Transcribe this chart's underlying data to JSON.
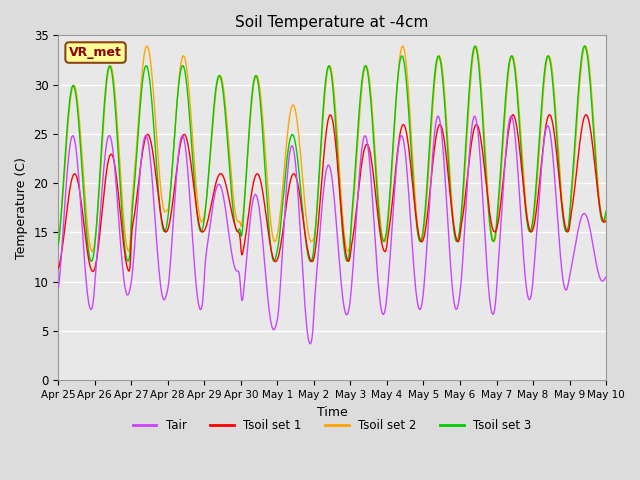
{
  "title": "Soil Temperature at -4cm",
  "xlabel": "Time",
  "ylabel": "Temperature (C)",
  "ylim": [
    0,
    35
  ],
  "background_color": "#dcdcdc",
  "plot_bg_color": "#e8e8e8",
  "colors": {
    "Tair": "#cc44ff",
    "Tsoil set 1": "#ff0000",
    "Tsoil set 2": "#ffa500",
    "Tsoil set 3": "#00cc00"
  },
  "legend_label": "VR_met",
  "xtick_labels": [
    "Apr 25",
    "Apr 26",
    "Apr 27",
    "Apr 28",
    "Apr 29",
    "Apr 30",
    "May 1",
    "May 2",
    "May 3",
    "May 4",
    "May 5",
    "May 6",
    "May 7",
    "May 8",
    "May 9",
    "May 10"
  ],
  "xtick_positions": [
    0,
    1,
    2,
    3,
    4,
    5,
    6,
    7,
    8,
    9,
    10,
    11,
    12,
    13,
    14,
    15
  ],
  "ytick_labels": [
    "0",
    "5",
    "10",
    "15",
    "20",
    "25",
    "30",
    "35"
  ],
  "ytick_positions": [
    0,
    5,
    10,
    15,
    20,
    25,
    30,
    35
  ]
}
